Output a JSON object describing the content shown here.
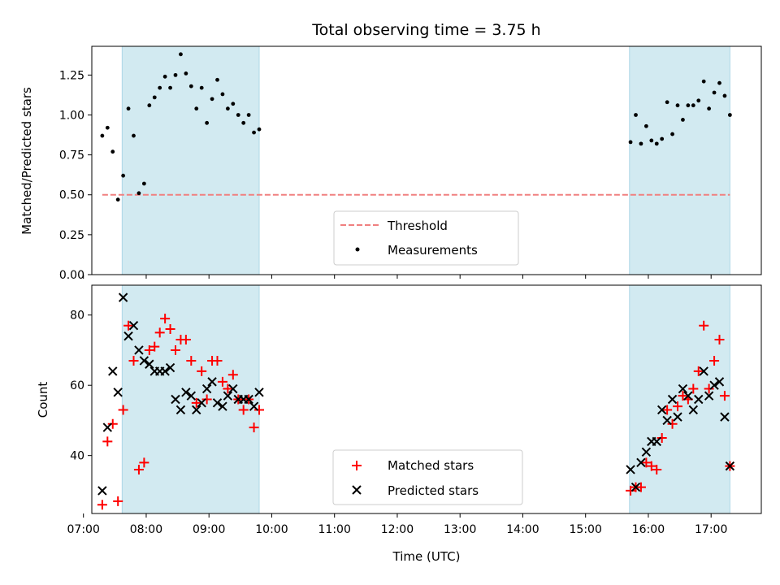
{
  "chart_data": {
    "title": "Total observing time = 3.75 h",
    "x_axis": {
      "label": "Time (UTC)",
      "unit": "hours UTC",
      "range": [
        "07:08",
        "17:48"
      ],
      "ticks": [
        "07:00",
        "08:00",
        "09:00",
        "10:00",
        "11:00",
        "12:00",
        "13:00",
        "14:00",
        "15:00",
        "16:00",
        "17:00"
      ]
    },
    "observing_windows": [
      {
        "start": "07:37",
        "end": "09:48"
      },
      {
        "start": "15:42",
        "end": "17:18"
      }
    ],
    "window_color": "#add8e6",
    "panels": [
      {
        "type": "scatter",
        "ylabel": "Matched/Predicted stars",
        "ylim": [
          0,
          1.43
        ],
        "yticks": [
          "0.00",
          "0.25",
          "0.50",
          "0.75",
          "1.00",
          "1.25"
        ],
        "legend": {
          "placement": "lower-center",
          "entries": [
            "Threshold",
            "Measurements"
          ]
        },
        "threshold": {
          "name": "Threshold",
          "value": 0.5,
          "x_start": "07:18",
          "x_end": "17:18",
          "color": "#f08080",
          "style": "dashed"
        },
        "series": [
          {
            "name": "Measurements",
            "color": "#000000",
            "marker": "dot",
            "points": [
              [
                "07:18",
                0.87
              ],
              [
                "07:23",
                0.92
              ],
              [
                "07:28",
                0.77
              ],
              [
                "07:33",
                0.47
              ],
              [
                "07:38",
                0.62
              ],
              [
                "07:43",
                1.04
              ],
              [
                "07:48",
                0.87
              ],
              [
                "07:53",
                0.51
              ],
              [
                "07:58",
                0.57
              ],
              [
                "08:03",
                1.06
              ],
              [
                "08:08",
                1.11
              ],
              [
                "08:13",
                1.17
              ],
              [
                "08:18",
                1.24
              ],
              [
                "08:23",
                1.17
              ],
              [
                "08:28",
                1.25
              ],
              [
                "08:33",
                1.38
              ],
              [
                "08:38",
                1.26
              ],
              [
                "08:43",
                1.18
              ],
              [
                "08:48",
                1.04
              ],
              [
                "08:53",
                1.17
              ],
              [
                "08:58",
                0.95
              ],
              [
                "09:03",
                1.1
              ],
              [
                "09:08",
                1.22
              ],
              [
                "09:13",
                1.13
              ],
              [
                "09:18",
                1.04
              ],
              [
                "09:23",
                1.07
              ],
              [
                "09:28",
                1.0
              ],
              [
                "09:33",
                0.95
              ],
              [
                "09:38",
                1.0
              ],
              [
                "09:43",
                0.89
              ],
              [
                "09:48",
                0.91
              ],
              [
                "15:43",
                0.83
              ],
              [
                "15:48",
                1.0
              ],
              [
                "15:53",
                0.82
              ],
              [
                "15:58",
                0.93
              ],
              [
                "16:03",
                0.84
              ],
              [
                "16:08",
                0.82
              ],
              [
                "16:13",
                0.85
              ],
              [
                "16:18",
                1.08
              ],
              [
                "16:23",
                0.88
              ],
              [
                "16:28",
                1.06
              ],
              [
                "16:33",
                0.97
              ],
              [
                "16:38",
                1.06
              ],
              [
                "16:43",
                1.06
              ],
              [
                "16:48",
                1.09
              ],
              [
                "16:53",
                1.21
              ],
              [
                "16:58",
                1.04
              ],
              [
                "17:03",
                1.14
              ],
              [
                "17:08",
                1.2
              ],
              [
                "17:13",
                1.12
              ],
              [
                "17:18",
                1.0
              ]
            ]
          }
        ]
      },
      {
        "type": "scatter",
        "ylabel": "Count",
        "ylim": [
          23.5,
          88.5
        ],
        "yticks": [
          "40",
          "60",
          "80"
        ],
        "legend": {
          "placement": "lower-center",
          "entries": [
            "Matched stars",
            "Predicted stars"
          ]
        },
        "series": [
          {
            "name": "Matched stars",
            "color": "#ff0000",
            "marker": "plus",
            "points": [
              [
                "07:18",
                26
              ],
              [
                "07:23",
                44
              ],
              [
                "07:28",
                49
              ],
              [
                "07:33",
                27
              ],
              [
                "07:38",
                53
              ],
              [
                "07:43",
                77
              ],
              [
                "07:48",
                67
              ],
              [
                "07:53",
                36
              ],
              [
                "07:58",
                38
              ],
              [
                "08:03",
                70
              ],
              [
                "08:08",
                71
              ],
              [
                "08:13",
                75
              ],
              [
                "08:18",
                79
              ],
              [
                "08:23",
                76
              ],
              [
                "08:28",
                70
              ],
              [
                "08:33",
                73
              ],
              [
                "08:38",
                73
              ],
              [
                "08:43",
                67
              ],
              [
                "08:48",
                55
              ],
              [
                "08:53",
                64
              ],
              [
                "08:58",
                56
              ],
              [
                "09:03",
                67
              ],
              [
                "09:08",
                67
              ],
              [
                "09:13",
                61
              ],
              [
                "09:18",
                59
              ],
              [
                "09:23",
                63
              ],
              [
                "09:28",
                56
              ],
              [
                "09:33",
                53
              ],
              [
                "09:38",
                56
              ],
              [
                "09:43",
                48
              ],
              [
                "09:48",
                53
              ],
              [
                "15:43",
                30
              ],
              [
                "15:48",
                31
              ],
              [
                "15:53",
                31
              ],
              [
                "15:58",
                38
              ],
              [
                "16:03",
                37
              ],
              [
                "16:08",
                36
              ],
              [
                "16:13",
                45
              ],
              [
                "16:18",
                53
              ],
              [
                "16:23",
                49
              ],
              [
                "16:28",
                54
              ],
              [
                "16:33",
                57
              ],
              [
                "16:38",
                56
              ],
              [
                "16:43",
                59
              ],
              [
                "16:48",
                64
              ],
              [
                "16:53",
                77
              ],
              [
                "16:58",
                59
              ],
              [
                "17:03",
                67
              ],
              [
                "17:08",
                73
              ],
              [
                "17:13",
                57
              ],
              [
                "17:18",
                37
              ]
            ]
          },
          {
            "name": "Predicted stars",
            "color": "#000000",
            "marker": "x",
            "points": [
              [
                "07:18",
                30
              ],
              [
                "07:23",
                48
              ],
              [
                "07:28",
                64
              ],
              [
                "07:33",
                58
              ],
              [
                "07:38",
                85
              ],
              [
                "07:43",
                74
              ],
              [
                "07:48",
                77
              ],
              [
                "07:53",
                70
              ],
              [
                "07:58",
                67
              ],
              [
                "08:03",
                66
              ],
              [
                "08:08",
                64
              ],
              [
                "08:13",
                64
              ],
              [
                "08:18",
                64
              ],
              [
                "08:23",
                65
              ],
              [
                "08:28",
                56
              ],
              [
                "08:33",
                53
              ],
              [
                "08:38",
                58
              ],
              [
                "08:43",
                57
              ],
              [
                "08:48",
                53
              ],
              [
                "08:53",
                55
              ],
              [
                "08:58",
                59
              ],
              [
                "09:03",
                61
              ],
              [
                "09:08",
                55
              ],
              [
                "09:13",
                54
              ],
              [
                "09:18",
                57
              ],
              [
                "09:23",
                59
              ],
              [
                "09:28",
                56
              ],
              [
                "09:33",
                56
              ],
              [
                "09:38",
                56
              ],
              [
                "09:43",
                54
              ],
              [
                "09:48",
                58
              ],
              [
                "15:43",
                36
              ],
              [
                "15:48",
                31
              ],
              [
                "15:53",
                38
              ],
              [
                "15:58",
                41
              ],
              [
                "16:03",
                44
              ],
              [
                "16:08",
                44
              ],
              [
                "16:13",
                53
              ],
              [
                "16:18",
                50
              ],
              [
                "16:23",
                56
              ],
              [
                "16:28",
                51
              ],
              [
                "16:33",
                59
              ],
              [
                "16:38",
                57
              ],
              [
                "16:43",
                53
              ],
              [
                "16:48",
                56
              ],
              [
                "16:53",
                64
              ],
              [
                "16:58",
                57
              ],
              [
                "17:03",
                60
              ],
              [
                "17:08",
                61
              ],
              [
                "17:13",
                51
              ],
              [
                "17:18",
                37
              ]
            ]
          }
        ]
      }
    ]
  }
}
